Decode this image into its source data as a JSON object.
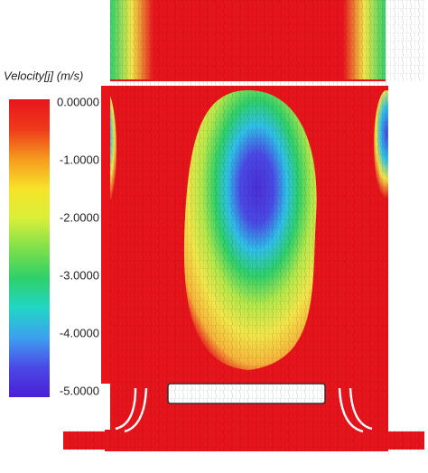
{
  "legend": {
    "title": "Velocity[j] (m/s)",
    "ticks": [
      "0.00000",
      "-1.0000",
      "-2.0000",
      "-3.0000",
      "-4.0000",
      "-5.0000"
    ]
  }
}
